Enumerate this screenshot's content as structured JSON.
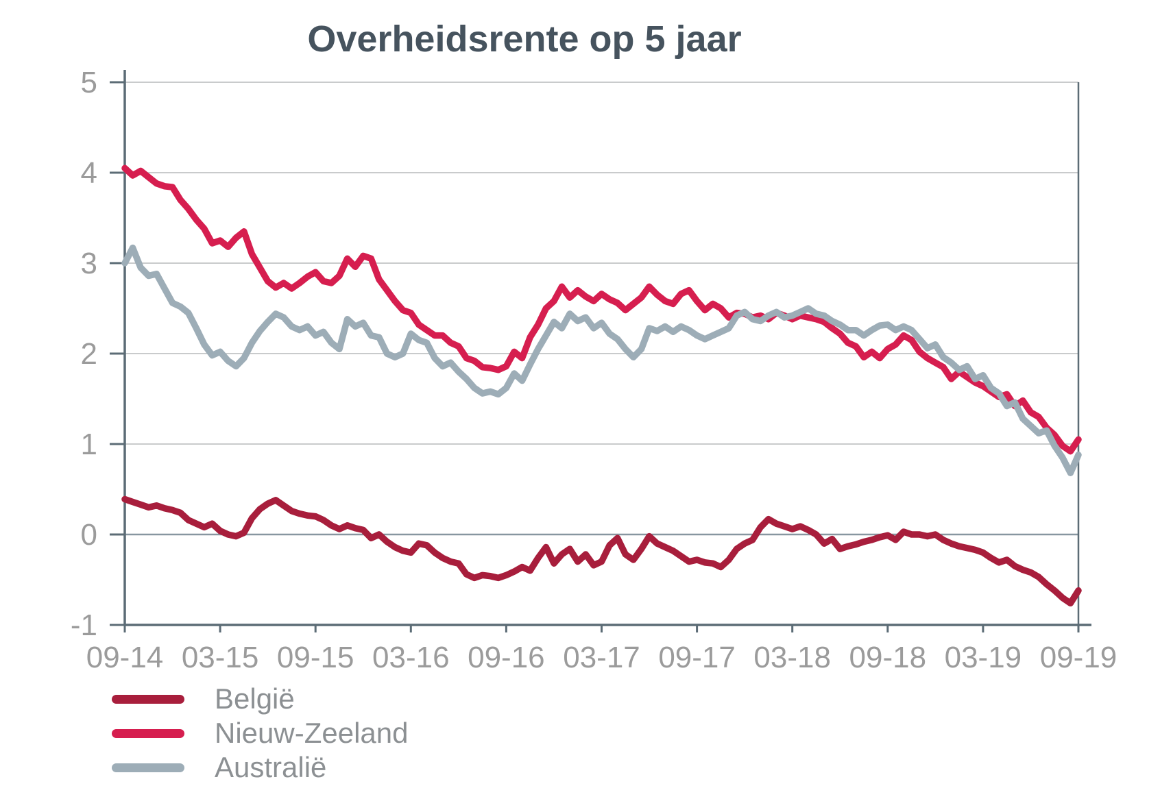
{
  "chart_data": {
    "type": "line",
    "title": "Overheidsrente op 5 jaar",
    "x_axis": {
      "tick_labels": [
        "09-14",
        "03-15",
        "09-15",
        "03-16",
        "09-16",
        "03-17",
        "09-17",
        "03-18",
        "09-18",
        "03-19",
        "09-19"
      ],
      "range_months": [
        0,
        60
      ],
      "sampling": "two points per month (start and mid-month), 121 points per series"
    },
    "y_axis": {
      "tick_labels": [
        "5",
        "4",
        "3",
        "2",
        "1",
        "0",
        "-1"
      ],
      "tick_values": [
        5,
        4,
        3,
        2,
        1,
        0,
        -1
      ],
      "ylim": [
        -1,
        5
      ]
    },
    "grid": "horizontal",
    "legend_position": "bottom-left",
    "series": [
      {
        "name": "België",
        "color": "#a81e3c",
        "values": [
          0.39,
          0.36,
          0.33,
          0.3,
          0.32,
          0.29,
          0.27,
          0.24,
          0.16,
          0.12,
          0.08,
          0.12,
          0.04,
          0.0,
          -0.02,
          0.02,
          0.18,
          0.28,
          0.34,
          0.38,
          0.32,
          0.26,
          0.23,
          0.21,
          0.2,
          0.16,
          0.1,
          0.06,
          0.1,
          0.07,
          0.05,
          -0.04,
          0.0,
          -0.08,
          -0.14,
          -0.18,
          -0.2,
          -0.1,
          -0.12,
          -0.2,
          -0.26,
          -0.3,
          -0.32,
          -0.44,
          -0.48,
          -0.45,
          -0.46,
          -0.48,
          -0.45,
          -0.41,
          -0.36,
          -0.4,
          -0.26,
          -0.14,
          -0.32,
          -0.22,
          -0.16,
          -0.3,
          -0.22,
          -0.34,
          -0.3,
          -0.12,
          -0.04,
          -0.22,
          -0.28,
          -0.16,
          -0.02,
          -0.1,
          -0.14,
          -0.18,
          -0.24,
          -0.3,
          -0.28,
          -0.31,
          -0.32,
          -0.36,
          -0.28,
          -0.16,
          -0.1,
          -0.06,
          0.08,
          0.17,
          0.12,
          0.09,
          0.06,
          0.09,
          0.05,
          0.0,
          -0.1,
          -0.05,
          -0.16,
          -0.13,
          -0.11,
          -0.08,
          -0.06,
          -0.03,
          -0.01,
          -0.06,
          0.03,
          0.0,
          0.0,
          -0.02,
          0.0,
          -0.06,
          -0.1,
          -0.13,
          -0.15,
          -0.17,
          -0.2,
          -0.26,
          -0.31,
          -0.28,
          -0.35,
          -0.39,
          -0.42,
          -0.47,
          -0.55,
          -0.62,
          -0.7,
          -0.76,
          -0.62
        ]
      },
      {
        "name": "Nieuw-Zeeland",
        "color": "#d61e4f",
        "values": [
          4.05,
          3.97,
          4.02,
          3.95,
          3.88,
          3.85,
          3.84,
          3.7,
          3.6,
          3.48,
          3.38,
          3.22,
          3.25,
          3.18,
          3.28,
          3.35,
          3.1,
          2.95,
          2.8,
          2.73,
          2.78,
          2.72,
          2.78,
          2.85,
          2.9,
          2.8,
          2.78,
          2.86,
          3.05,
          2.96,
          3.08,
          3.05,
          2.82,
          2.7,
          2.58,
          2.48,
          2.45,
          2.32,
          2.26,
          2.2,
          2.2,
          2.12,
          2.08,
          1.95,
          1.92,
          1.85,
          1.84,
          1.82,
          1.86,
          2.02,
          1.95,
          2.18,
          2.32,
          2.5,
          2.58,
          2.74,
          2.62,
          2.7,
          2.63,
          2.58,
          2.66,
          2.6,
          2.56,
          2.48,
          2.55,
          2.62,
          2.74,
          2.65,
          2.58,
          2.55,
          2.66,
          2.7,
          2.58,
          2.48,
          2.55,
          2.5,
          2.4,
          2.45,
          2.44,
          2.4,
          2.42,
          2.38,
          2.45,
          2.42,
          2.38,
          2.42,
          2.4,
          2.38,
          2.35,
          2.28,
          2.22,
          2.12,
          2.08,
          1.96,
          2.02,
          1.95,
          2.05,
          2.1,
          2.2,
          2.15,
          2.02,
          1.95,
          1.9,
          1.85,
          1.72,
          1.8,
          1.74,
          1.68,
          1.64,
          1.58,
          1.52,
          1.55,
          1.42,
          1.48,
          1.35,
          1.3,
          1.18,
          1.1,
          0.98,
          0.92,
          1.05
        ]
      },
      {
        "name": "Australië",
        "color": "#9dadb7",
        "values": [
          3.0,
          3.17,
          2.95,
          2.86,
          2.88,
          2.72,
          2.56,
          2.52,
          2.45,
          2.28,
          2.1,
          1.98,
          2.02,
          1.92,
          1.86,
          1.95,
          2.12,
          2.25,
          2.35,
          2.44,
          2.4,
          2.3,
          2.26,
          2.3,
          2.2,
          2.24,
          2.12,
          2.05,
          2.38,
          2.3,
          2.34,
          2.2,
          2.18,
          2.0,
          1.96,
          2.0,
          2.22,
          2.15,
          2.12,
          1.95,
          1.86,
          1.9,
          1.8,
          1.72,
          1.62,
          1.56,
          1.58,
          1.55,
          1.62,
          1.78,
          1.7,
          1.88,
          2.05,
          2.2,
          2.35,
          2.28,
          2.44,
          2.36,
          2.4,
          2.28,
          2.34,
          2.22,
          2.16,
          2.05,
          1.96,
          2.05,
          2.28,
          2.25,
          2.3,
          2.24,
          2.3,
          2.26,
          2.2,
          2.16,
          2.2,
          2.24,
          2.28,
          2.42,
          2.46,
          2.38,
          2.36,
          2.42,
          2.46,
          2.4,
          2.42,
          2.46,
          2.5,
          2.44,
          2.42,
          2.36,
          2.32,
          2.26,
          2.26,
          2.2,
          2.26,
          2.31,
          2.32,
          2.26,
          2.3,
          2.26,
          2.16,
          2.06,
          2.1,
          1.96,
          1.9,
          1.82,
          1.86,
          1.72,
          1.76,
          1.62,
          1.56,
          1.42,
          1.46,
          1.28,
          1.2,
          1.12,
          1.15,
          0.98,
          0.85,
          0.68,
          0.88
        ]
      }
    ]
  },
  "legend": {
    "items": [
      {
        "label": "België"
      },
      {
        "label": "Nieuw-Zeeland"
      },
      {
        "label": "Australië"
      }
    ]
  },
  "colors": {
    "title": "#46535e",
    "axis_labels": "#9b9b9b",
    "gridline": "#c9cbcc",
    "zero_line": "#8796a0",
    "axis_line": "#5c6c76",
    "background": "#ffffff"
  }
}
